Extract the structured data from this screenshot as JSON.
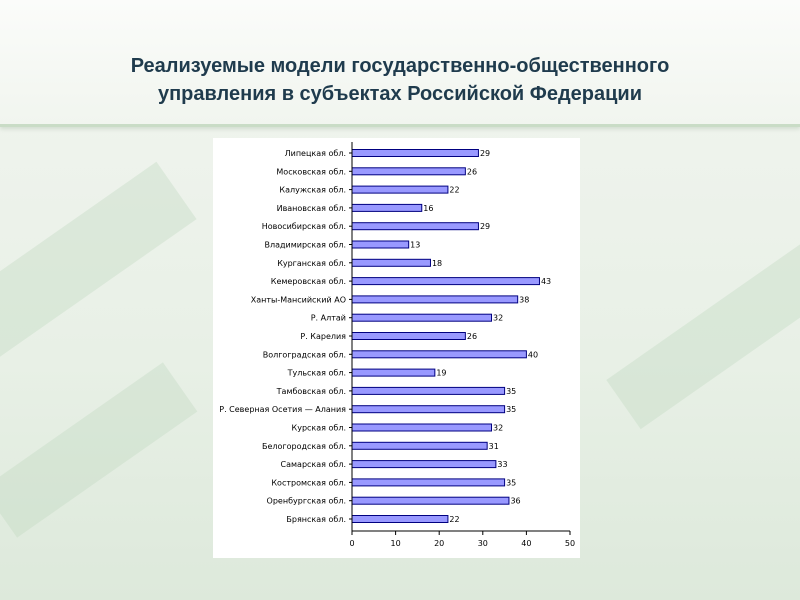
{
  "slide": {
    "title_line1": "Реализуемые модели  государственно-общественного",
    "title_line2": "управления в субъектах Российской Федерации"
  },
  "colors": {
    "bar_fill": "#9999ff",
    "bar_stroke": "#000080",
    "title": "#1f3b4d"
  },
  "chart_data": {
    "type": "bar",
    "orientation": "horizontal",
    "categories": [
      "Липецкая обл.",
      "Московская обл.",
      "Калужская обл.",
      "Ивановская обл.",
      "Новосибирская обл.",
      "Владимирская обл.",
      "Курганская обл.",
      "Кемеровская обл.",
      "Ханты-Мансийский АО",
      "Р. Алтай",
      "Р. Карелия",
      "Волгоградская обл.",
      "Тульская обл.",
      "Тамбовская обл.",
      "Р. Северная Осетия — Алания",
      "Курская обл.",
      "Белогородская обл.",
      "Самарская обл.",
      "Костромская обл.",
      "Оренбургская обл.",
      "Брянская обл."
    ],
    "values": [
      29,
      26,
      22,
      16,
      29,
      13,
      18,
      43,
      38,
      32,
      26,
      40,
      19,
      35,
      35,
      32,
      31,
      33,
      35,
      36,
      22
    ],
    "xlim": [
      0,
      50
    ],
    "xticks": [
      0,
      10,
      20,
      30,
      40,
      50
    ],
    "grid": false,
    "data_labels": true
  }
}
